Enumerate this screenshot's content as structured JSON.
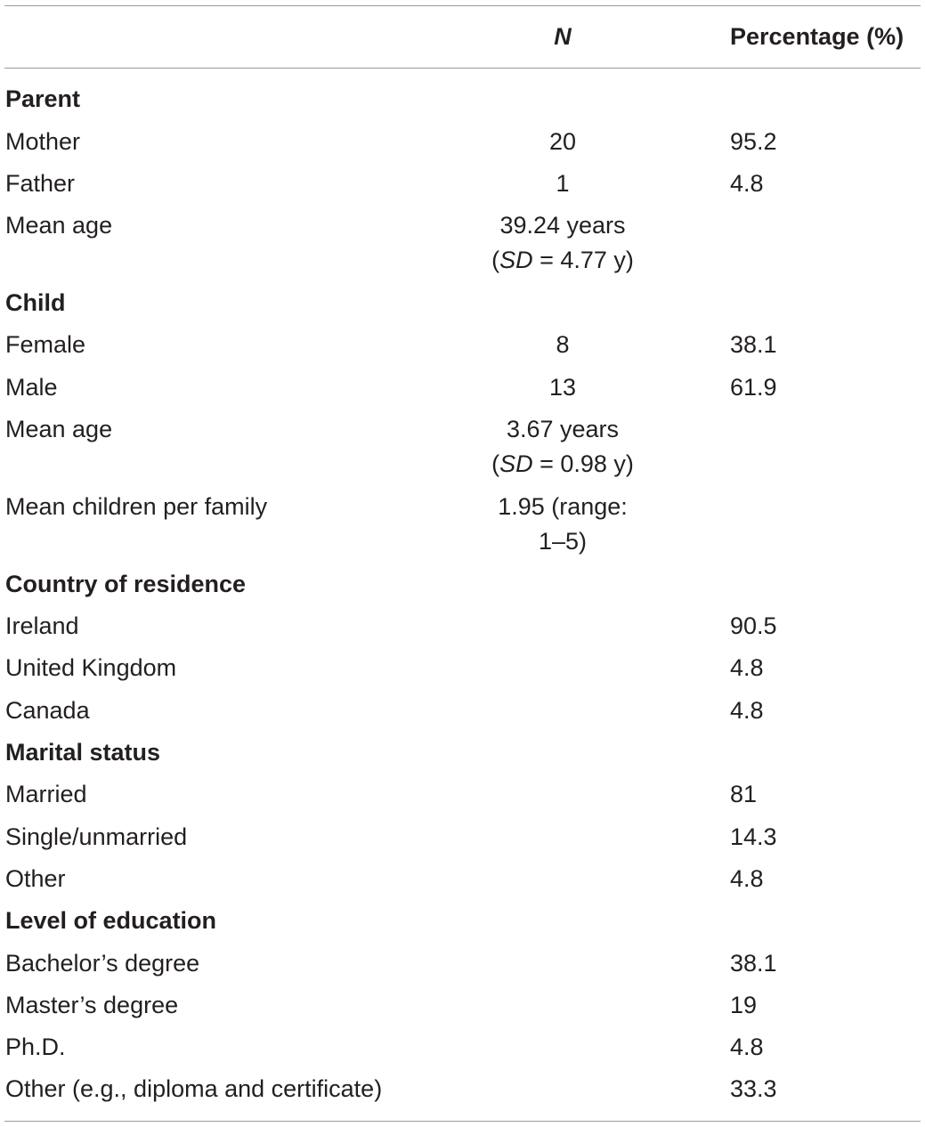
{
  "header": {
    "col_label": "",
    "col_n": "N",
    "col_pct": "Percentage (%)"
  },
  "sections": [
    {
      "title": "Parent",
      "rows": [
        {
          "label": "Mother",
          "n": "20",
          "pct": "95.2"
        },
        {
          "label": "Father",
          "n": "1",
          "pct": "4.8"
        },
        {
          "label": "Mean age",
          "n_line1": "39.24 years",
          "n_line2_sd": "SD",
          "n_line2_rest": " = 4.77 y)",
          "pct": ""
        }
      ]
    },
    {
      "title": "Child",
      "rows": [
        {
          "label": "Female",
          "n": "8",
          "pct": "38.1"
        },
        {
          "label": "Male",
          "n": "13",
          "pct": "61.9"
        },
        {
          "label": "Mean age",
          "n_line1": "3.67 years",
          "n_line2_sd": "SD",
          "n_line2_rest": " = 0.98 y)",
          "pct": ""
        },
        {
          "label": "Mean children per family",
          "n_line1": "1.95 (range:",
          "n_line2": "1–5)",
          "pct": ""
        }
      ]
    },
    {
      "title": "Country of residence",
      "rows": [
        {
          "label": "Ireland",
          "n": "",
          "pct": "90.5"
        },
        {
          "label": "United Kingdom",
          "n": "",
          "pct": "4.8"
        },
        {
          "label": "Canada",
          "n": "",
          "pct": "4.8"
        }
      ]
    },
    {
      "title": "Marital status",
      "rows": [
        {
          "label": "Married",
          "n": "",
          "pct": "81"
        },
        {
          "label": "Single/unmarried",
          "n": "",
          "pct": "14.3"
        },
        {
          "label": "Other",
          "n": "",
          "pct": "4.8"
        }
      ]
    },
    {
      "title": "Level of education",
      "rows": [
        {
          "label": "Bachelor’s degree",
          "n": "",
          "pct": "38.1"
        },
        {
          "label": "Master’s degree",
          "n": "",
          "pct": "19"
        },
        {
          "label": "Ph.D.",
          "n": "",
          "pct": "4.8"
        },
        {
          "label": "Other (e.g., diploma and certificate)",
          "n": "",
          "pct": "33.3"
        }
      ]
    }
  ]
}
